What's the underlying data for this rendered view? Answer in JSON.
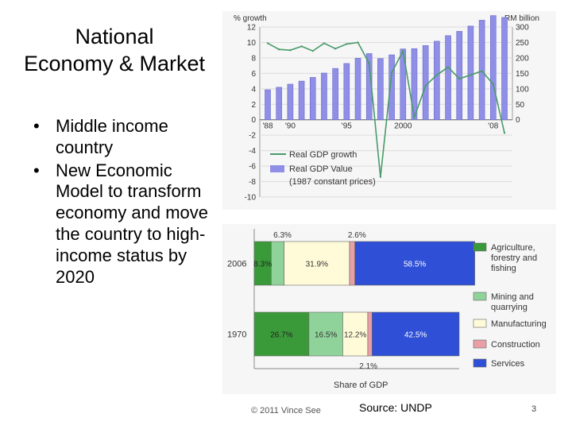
{
  "slide": {
    "title_line1": "National",
    "title_line2": "Economy & Market",
    "bullets": [
      "Middle income country",
      "New Economic Model to transform economy and move the country to high-income status by 2020"
    ],
    "copyright": "© 2011 Vince See",
    "source": "Source: UNDP",
    "page_number": "3"
  },
  "chart_data": [
    {
      "type": "bar+line",
      "left_axis_label": "% growth",
      "right_axis_label": "RM billion",
      "left_ylim": [
        -10,
        12
      ],
      "right_ylim": [
        0,
        300
      ],
      "left_ticks": [
        "12",
        "10",
        "8",
        "6",
        "4",
        "2",
        "0",
        "-2",
        "-4",
        "-6",
        "-8",
        "-10"
      ],
      "right_ticks": [
        "300",
        "250",
        "200",
        "150",
        "100",
        "50",
        "0"
      ],
      "x_tick_labels": [
        {
          "year": 1988,
          "label": "'88"
        },
        {
          "year": 1990,
          "label": "'90"
        },
        {
          "year": 1995,
          "label": "'95"
        },
        {
          "year": 2000,
          "label": "2000"
        },
        {
          "year": 2008,
          "label": "'08"
        }
      ],
      "years": [
        1988,
        1989,
        1990,
        1991,
        1992,
        1993,
        1994,
        1995,
        1996,
        1997,
        1998,
        1999,
        2000,
        2001,
        2002,
        2003,
        2004,
        2005,
        2006,
        2007,
        2008,
        2009
      ],
      "series": [
        {
          "name": "Real GDP growth",
          "axis": "left",
          "kind": "line",
          "color": "#4a9a6a",
          "values": [
            9.9,
            9.1,
            9.0,
            9.5,
            8.9,
            9.9,
            9.2,
            9.8,
            10.0,
            7.3,
            -7.4,
            6.1,
            8.9,
            0.3,
            4.4,
            5.8,
            6.8,
            5.3,
            5.8,
            6.3,
            4.6,
            -1.7
          ]
        },
        {
          "name": "Real GDP Value",
          "axis": "right",
          "kind": "bar",
          "color": "#8f8fe8",
          "values": [
            97,
            105,
            115,
            125,
            137,
            151,
            166,
            182,
            199,
            214,
            198,
            210,
            229,
            230,
            240,
            254,
            272,
            286,
            303,
            322,
            337,
            331
          ]
        }
      ],
      "legend": [
        {
          "label": "Real GDP growth",
          "kind": "line"
        },
        {
          "label": "Real GDP Value",
          "kind": "bar"
        },
        {
          "label": "(1987 constant prices)",
          "kind": "note"
        }
      ]
    },
    {
      "type": "stacked-bar-horizontal",
      "xlabel": "Share of GDP",
      "categories": [
        "2006",
        "1970"
      ],
      "segments": [
        {
          "name": "Agriculture, forestry and fishing",
          "color": "#3a9a3a",
          "values": [
            8.3,
            26.7
          ]
        },
        {
          "name": "Mining and quarrying",
          "color": "#8fd39a",
          "values": [
            6.3,
            16.5
          ]
        },
        {
          "name": "Manufacturing",
          "color": "#fffbd9",
          "values": [
            31.9,
            12.2
          ]
        },
        {
          "name": "Construction",
          "color": "#e8a0a6",
          "values": [
            2.6,
            2.1
          ]
        },
        {
          "name": "Services",
          "color": "#2f4fd6",
          "values": [
            58.5,
            42.5
          ]
        }
      ],
      "labels": {
        "2006": {
          "agri": "8.3%",
          "mining": "6.3%",
          "manuf": "31.9%",
          "constr": "2.6%",
          "services": "58.5%"
        },
        "1970": {
          "agri": "26.7%",
          "mining": "16.5%",
          "manuf": "12.2%",
          "constr": "2.1%",
          "services": "42.5%"
        }
      },
      "legend": [
        {
          "line1": "Agriculture,",
          "line2": "forestry and",
          "line3": "fishing"
        },
        {
          "line1": "Mining and",
          "line2": "quarrying"
        },
        {
          "line1": "Manufacturing"
        },
        {
          "line1": "Construction"
        },
        {
          "line1": "Services"
        }
      ]
    }
  ]
}
